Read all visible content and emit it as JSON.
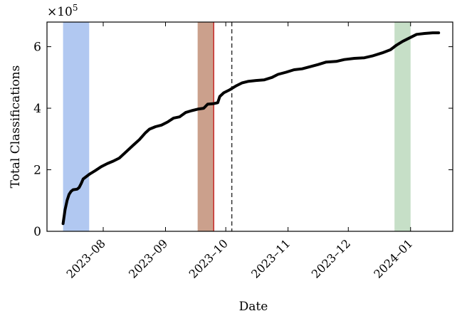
{
  "chart_data": {
    "type": "line",
    "xlabel": "Date",
    "ylabel": "Total Classifications",
    "y_multiplier": "×10",
    "y_exponent": "5",
    "ylim": [
      0,
      6.8
    ],
    "y_ticks": [
      0,
      2,
      4,
      6
    ],
    "xlim": [
      "2023-07-04",
      "2024-01-22"
    ],
    "x_ticks": [
      {
        "date": "2023-08-01",
        "label": "2023–08"
      },
      {
        "date": "2023-09-01",
        "label": "2023–09"
      },
      {
        "date": "2023-10-01",
        "label": "2023–10"
      },
      {
        "date": "2023-11-01",
        "label": "2023–11"
      },
      {
        "date": "2023-12-01",
        "label": "2023–12"
      },
      {
        "date": "2024-01-01",
        "label": "2024–01"
      }
    ],
    "series": [
      {
        "color": "#000000",
        "points": [
          [
            "2023-07-12",
            0.25
          ],
          [
            "2023-07-13",
            0.7
          ],
          [
            "2023-07-14",
            1.0
          ],
          [
            "2023-07-15",
            1.2
          ],
          [
            "2023-07-16",
            1.3
          ],
          [
            "2023-07-17",
            1.35
          ],
          [
            "2023-07-19",
            1.37
          ],
          [
            "2023-07-20",
            1.42
          ],
          [
            "2023-07-21",
            1.55
          ],
          [
            "2023-07-22",
            1.7
          ],
          [
            "2023-07-25",
            1.85
          ],
          [
            "2023-07-28",
            1.97
          ],
          [
            "2023-07-31",
            2.1
          ],
          [
            "2023-08-03",
            2.2
          ],
          [
            "2023-08-06",
            2.28
          ],
          [
            "2023-08-09",
            2.38
          ],
          [
            "2023-08-13",
            2.62
          ],
          [
            "2023-08-16",
            2.8
          ],
          [
            "2023-08-19",
            2.98
          ],
          [
            "2023-08-22",
            3.2
          ],
          [
            "2023-08-24",
            3.32
          ],
          [
            "2023-08-27",
            3.4
          ],
          [
            "2023-08-30",
            3.45
          ],
          [
            "2023-09-02",
            3.55
          ],
          [
            "2023-09-05",
            3.68
          ],
          [
            "2023-09-08",
            3.72
          ],
          [
            "2023-09-11",
            3.86
          ],
          [
            "2023-09-14",
            3.92
          ],
          [
            "2023-09-17",
            3.97
          ],
          [
            "2023-09-20",
            4.0
          ],
          [
            "2023-09-22",
            4.13
          ],
          [
            "2023-09-25",
            4.15
          ],
          [
            "2023-09-27",
            4.18
          ],
          [
            "2023-09-28",
            4.38
          ],
          [
            "2023-09-30",
            4.5
          ],
          [
            "2023-10-03",
            4.6
          ],
          [
            "2023-10-06",
            4.72
          ],
          [
            "2023-10-09",
            4.82
          ],
          [
            "2023-10-12",
            4.87
          ],
          [
            "2023-10-16",
            4.9
          ],
          [
            "2023-10-20",
            4.92
          ],
          [
            "2023-10-24",
            5.0
          ],
          [
            "2023-10-27",
            5.1
          ],
          [
            "2023-10-31",
            5.17
          ],
          [
            "2023-11-04",
            5.25
          ],
          [
            "2023-11-08",
            5.28
          ],
          [
            "2023-11-12",
            5.35
          ],
          [
            "2023-11-16",
            5.42
          ],
          [
            "2023-11-20",
            5.5
          ],
          [
            "2023-11-25",
            5.52
          ],
          [
            "2023-11-29",
            5.58
          ],
          [
            "2023-12-04",
            5.62
          ],
          [
            "2023-12-09",
            5.64
          ],
          [
            "2023-12-13",
            5.7
          ],
          [
            "2023-12-18",
            5.8
          ],
          [
            "2023-12-22",
            5.9
          ],
          [
            "2023-12-25",
            6.05
          ],
          [
            "2023-12-28",
            6.17
          ],
          [
            "2024-01-01",
            6.3
          ],
          [
            "2024-01-04",
            6.4
          ],
          [
            "2024-01-08",
            6.43
          ],
          [
            "2024-01-12",
            6.45
          ],
          [
            "2024-01-15",
            6.45
          ]
        ]
      }
    ],
    "shaded_spans": [
      {
        "start": "2023-07-12",
        "end": "2023-07-25",
        "color": "#b1c8f1"
      },
      {
        "start": "2023-09-17",
        "end": "2023-09-25",
        "color": "#cba08c"
      },
      {
        "start": "2023-12-24",
        "end": "2024-01-01",
        "color": "#c6dfc7"
      }
    ],
    "vertical_lines": [
      {
        "date": "2023-09-25",
        "color": "#c62828",
        "style": "solid"
      },
      {
        "date": "2023-10-04",
        "color": "#333333",
        "style": "dashed"
      }
    ],
    "grid": false,
    "legend": "none"
  }
}
